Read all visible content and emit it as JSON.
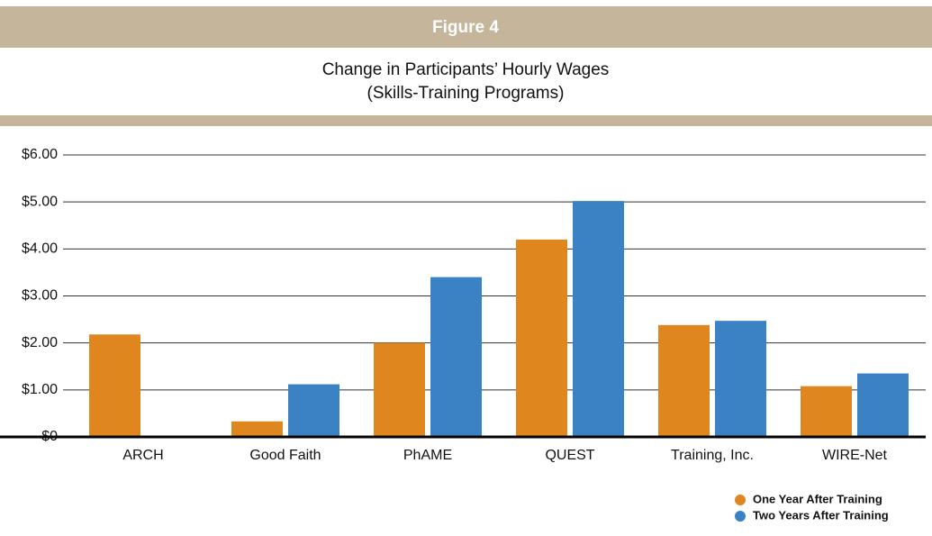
{
  "chart_data": {
    "type": "bar",
    "figure_label": "Figure 4",
    "title": "Change in Participants’ Hourly Wages",
    "subtitle": "(Skills-Training Programs)",
    "categories": [
      "ARCH",
      "Good Faith",
      "PhAME",
      "QUEST",
      "Training, Inc.",
      "WIRE-Net"
    ],
    "series": [
      {
        "name": "One Year After Training",
        "color": "#e0861f",
        "values": [
          2.18,
          0.33,
          2.0,
          4.2,
          2.38,
          1.08
        ]
      },
      {
        "name": "Two Years After Training",
        "color": "#3a82c4",
        "values": [
          null,
          1.12,
          3.4,
          5.02,
          2.47,
          1.35
        ]
      }
    ],
    "ylim": [
      0,
      6
    ],
    "yticks": [
      {
        "value": 0,
        "label": "$0"
      },
      {
        "value": 1,
        "label": "$1.00"
      },
      {
        "value": 2,
        "label": "$2.00"
      },
      {
        "value": 3,
        "label": "$3.00"
      },
      {
        "value": 4,
        "label": "$4.00"
      },
      {
        "value": 5,
        "label": "$5.00"
      },
      {
        "value": 6,
        "label": "$6.00"
      }
    ],
    "grid": true,
    "legend": "bottom-right"
  }
}
